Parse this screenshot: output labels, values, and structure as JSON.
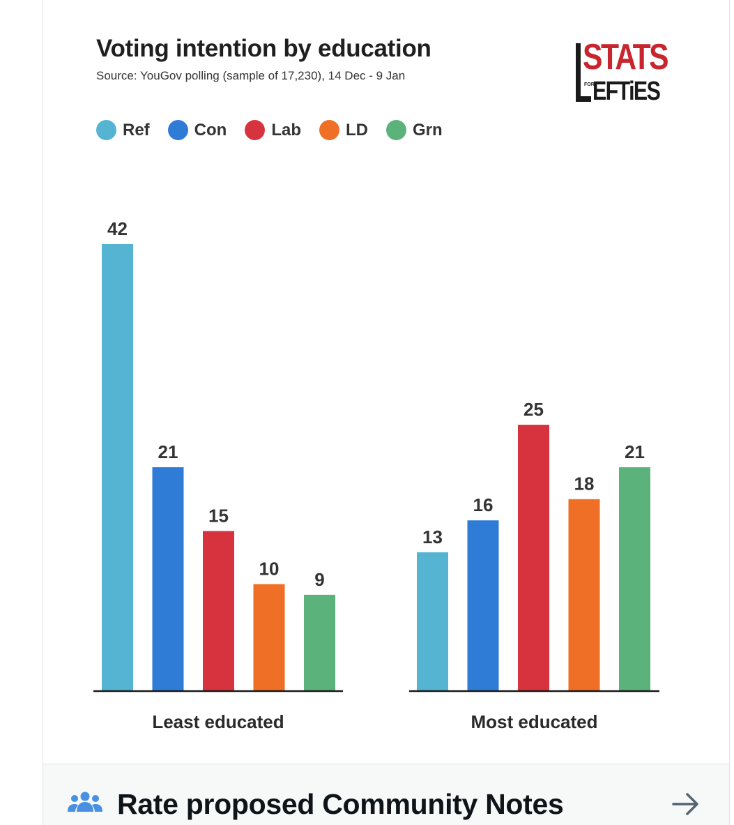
{
  "chart_data": {
    "type": "bar",
    "title": "Voting intention by education",
    "subtitle": "Source: YouGov polling (sample of 17,230), 14 Dec - 9 Jan",
    "categories": [
      "Least educated",
      "Most educated"
    ],
    "series": [
      {
        "name": "Ref",
        "color": "#56b4d3",
        "values": [
          42,
          13
        ]
      },
      {
        "name": "Con",
        "color": "#2f7cd6",
        "values": [
          21,
          16
        ]
      },
      {
        "name": "Lab",
        "color": "#d6333f",
        "values": [
          15,
          25
        ]
      },
      {
        "name": "LD",
        "color": "#ef6f26",
        "values": [
          10,
          18
        ]
      },
      {
        "name": "Grn",
        "color": "#5cb27b",
        "values": [
          9,
          21
        ]
      }
    ],
    "ylim": [
      0,
      42
    ],
    "grid": false,
    "legend": "top-left"
  },
  "logo": {
    "line1": "STATS",
    "small": "FOR",
    "line2": "EFTiES"
  },
  "community_notes": {
    "label": "Rate proposed Community Notes"
  }
}
